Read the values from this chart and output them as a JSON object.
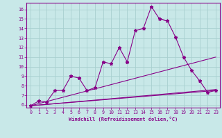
{
  "xlabel": "Windchill (Refroidissement éolien,°C)",
  "xlim": [
    -0.5,
    23.5
  ],
  "ylim": [
    5.7,
    16.7
  ],
  "xticks": [
    0,
    1,
    2,
    3,
    4,
    5,
    6,
    7,
    8,
    9,
    10,
    11,
    12,
    13,
    14,
    15,
    16,
    17,
    18,
    19,
    20,
    21,
    22,
    23
  ],
  "yticks": [
    6,
    7,
    8,
    9,
    10,
    11,
    12,
    13,
    14,
    15,
    16
  ],
  "bg_color": "#c8e8e8",
  "grid_color": "#a8d0d0",
  "line_color": "#880088",
  "line1_x": [
    0,
    1,
    2,
    3,
    4,
    5,
    6,
    7,
    8,
    9,
    10,
    11,
    12,
    13,
    14,
    15,
    16,
    17,
    18,
    19,
    20,
    21,
    22,
    23
  ],
  "line1_y": [
    5.9,
    6.4,
    6.3,
    7.5,
    7.5,
    9.0,
    8.8,
    7.5,
    7.8,
    10.5,
    10.3,
    12.0,
    10.5,
    13.8,
    14.0,
    16.3,
    15.0,
    14.8,
    13.1,
    11.0,
    9.6,
    8.5,
    7.3,
    7.5
  ],
  "line2_x": [
    0,
    23
  ],
  "line2_y": [
    5.9,
    7.5
  ],
  "line3_x": [
    0,
    23
  ],
  "line3_y": [
    5.9,
    7.6
  ],
  "line4_x": [
    0,
    23
  ],
  "line4_y": [
    5.9,
    11.0
  ]
}
